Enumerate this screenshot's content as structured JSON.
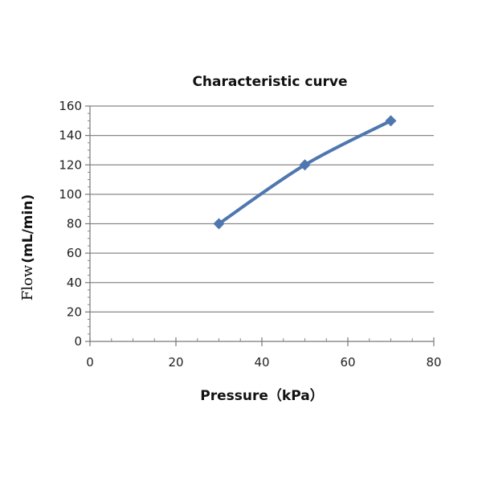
{
  "chart_data": {
    "type": "line",
    "title": "Characteristic curve",
    "xlabel": "Pressure（kPa）",
    "ylabel_prefix": "Flow",
    "ylabel_suffix": "(mL/min)",
    "xlim": [
      0,
      80
    ],
    "ylim": [
      0,
      160
    ],
    "x_ticks": [
      0,
      20,
      40,
      60,
      80
    ],
    "y_ticks": [
      0,
      20,
      40,
      60,
      80,
      100,
      120,
      140,
      160
    ],
    "grid": true,
    "series": [
      {
        "name": "Flow",
        "color": "#4f77af",
        "x": [
          30,
          50,
          70
        ],
        "y": [
          80,
          120,
          150
        ]
      }
    ]
  }
}
